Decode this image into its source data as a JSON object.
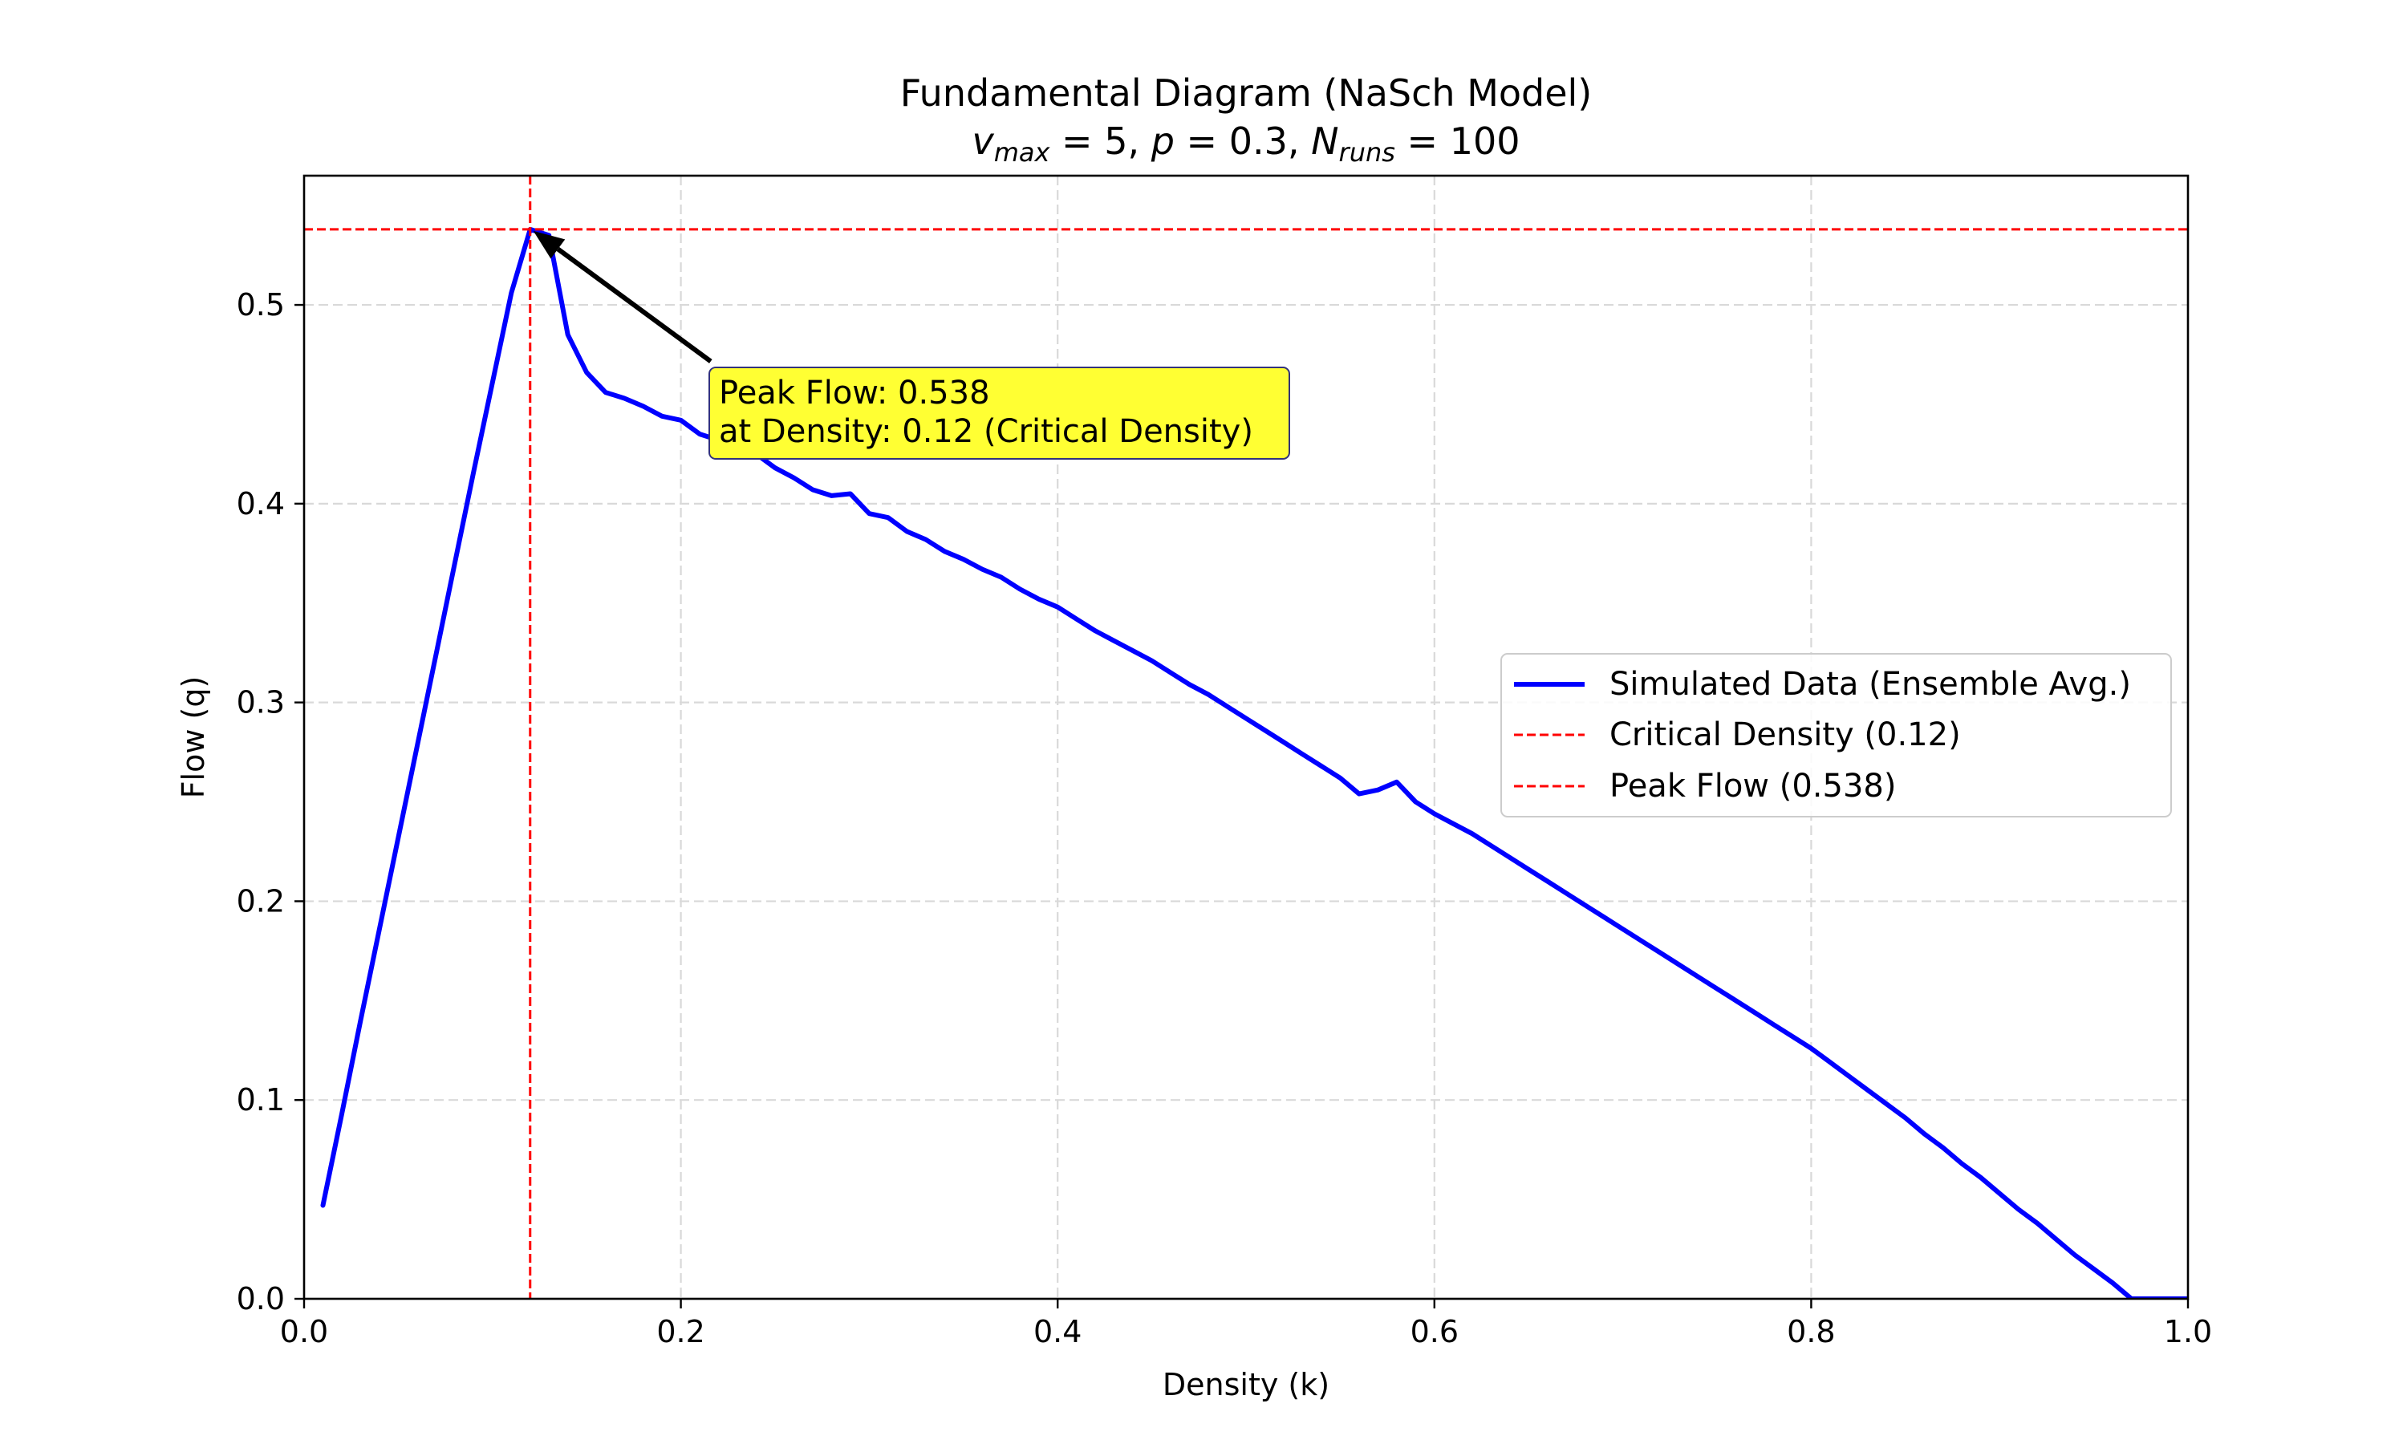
{
  "chart_data": {
    "type": "line",
    "title": "Fundamental Diagram (NaSch Model)",
    "subtitle": {
      "v": "v",
      "v_sub": "max",
      "v_eq": " = 5, ",
      "p": "p",
      "p_eq": " = 0.3, ",
      "n": "N",
      "n_sub": "runs",
      "n_eq": " = 100"
    },
    "xlabel": "Density (k)",
    "ylabel": "Flow (q)",
    "xlim": [
      0.0,
      1.0
    ],
    "ylim": [
      0.0,
      0.565
    ],
    "xticks": [
      0.0,
      0.2,
      0.4,
      0.6,
      0.8,
      1.0
    ],
    "xtick_labels": [
      "0.0",
      "0.2",
      "0.4",
      "0.6",
      "0.8",
      "1.0"
    ],
    "yticks": [
      0.0,
      0.1,
      0.2,
      0.3,
      0.4,
      0.5
    ],
    "ytick_labels": [
      "0.0",
      "0.1",
      "0.2",
      "0.3",
      "0.4",
      "0.5"
    ],
    "grid": true,
    "series": [
      {
        "name": "Simulated Data (Ensemble Avg.)",
        "color": "#0000ff",
        "x": [
          0.01,
          0.02,
          0.03,
          0.04,
          0.05,
          0.06,
          0.07,
          0.08,
          0.09,
          0.1,
          0.11,
          0.12,
          0.13,
          0.14,
          0.15,
          0.16,
          0.17,
          0.18,
          0.19,
          0.2,
          0.21,
          0.22,
          0.23,
          0.24,
          0.25,
          0.26,
          0.27,
          0.28,
          0.29,
          0.3,
          0.31,
          0.32,
          0.33,
          0.34,
          0.35,
          0.36,
          0.37,
          0.38,
          0.39,
          0.4,
          0.41,
          0.42,
          0.43,
          0.44,
          0.45,
          0.46,
          0.47,
          0.48,
          0.49,
          0.5,
          0.51,
          0.52,
          0.53,
          0.54,
          0.55,
          0.56,
          0.57,
          0.58,
          0.59,
          0.6,
          0.61,
          0.62,
          0.63,
          0.64,
          0.65,
          0.66,
          0.67,
          0.68,
          0.69,
          0.7,
          0.71,
          0.72,
          0.73,
          0.74,
          0.75,
          0.76,
          0.77,
          0.78,
          0.79,
          0.8,
          0.81,
          0.82,
          0.83,
          0.84,
          0.85,
          0.86,
          0.87,
          0.88,
          0.89,
          0.9,
          0.91,
          0.92,
          0.93,
          0.94,
          0.95,
          0.96,
          0.97,
          0.98,
          0.99,
          1.0
        ],
        "y": [
          0.047,
          0.093,
          0.14,
          0.186,
          0.232,
          0.278,
          0.324,
          0.37,
          0.416,
          0.461,
          0.506,
          0.538,
          0.535,
          0.485,
          0.466,
          0.456,
          0.453,
          0.449,
          0.444,
          0.442,
          0.435,
          0.432,
          0.428,
          0.425,
          0.418,
          0.413,
          0.407,
          0.404,
          0.405,
          0.395,
          0.393,
          0.386,
          0.382,
          0.376,
          0.372,
          0.367,
          0.363,
          0.357,
          0.352,
          0.348,
          0.342,
          0.336,
          0.331,
          0.326,
          0.321,
          0.315,
          0.309,
          0.304,
          0.298,
          0.292,
          0.286,
          0.28,
          0.274,
          0.268,
          0.262,
          0.254,
          0.256,
          0.26,
          0.25,
          0.244,
          0.239,
          0.234,
          0.228,
          0.222,
          0.216,
          0.21,
          0.204,
          0.198,
          0.192,
          0.186,
          0.18,
          0.174,
          0.168,
          0.162,
          0.156,
          0.15,
          0.144,
          0.138,
          0.132,
          0.126,
          0.119,
          0.112,
          0.105,
          0.098,
          0.091,
          0.083,
          0.076,
          0.068,
          0.061,
          0.053,
          0.045,
          0.038,
          0.03,
          0.022,
          0.015,
          0.008,
          0.0,
          0.0,
          0.0,
          0.0
        ]
      }
    ],
    "reference_lines": [
      {
        "name": "Critical Density (0.12)",
        "orientation": "vertical",
        "value": 0.12,
        "color": "#ff0000",
        "style": "dashed"
      },
      {
        "name": "Peak Flow (0.538)",
        "orientation": "horizontal",
        "value": 0.538,
        "color": "#ff0000",
        "style": "dashed"
      }
    ],
    "legend": {
      "position": "center-right",
      "entries": [
        "Simulated Data (Ensemble Avg.)",
        "Critical Density (0.12)",
        "Peak Flow (0.538)"
      ]
    },
    "annotation": {
      "line1": "Peak Flow: 0.538",
      "line2": "at Density: 0.12 (Critical Density)",
      "point": [
        0.12,
        0.538
      ],
      "text_at": [
        0.215,
        0.47
      ],
      "box_color": "#ffff33"
    }
  }
}
